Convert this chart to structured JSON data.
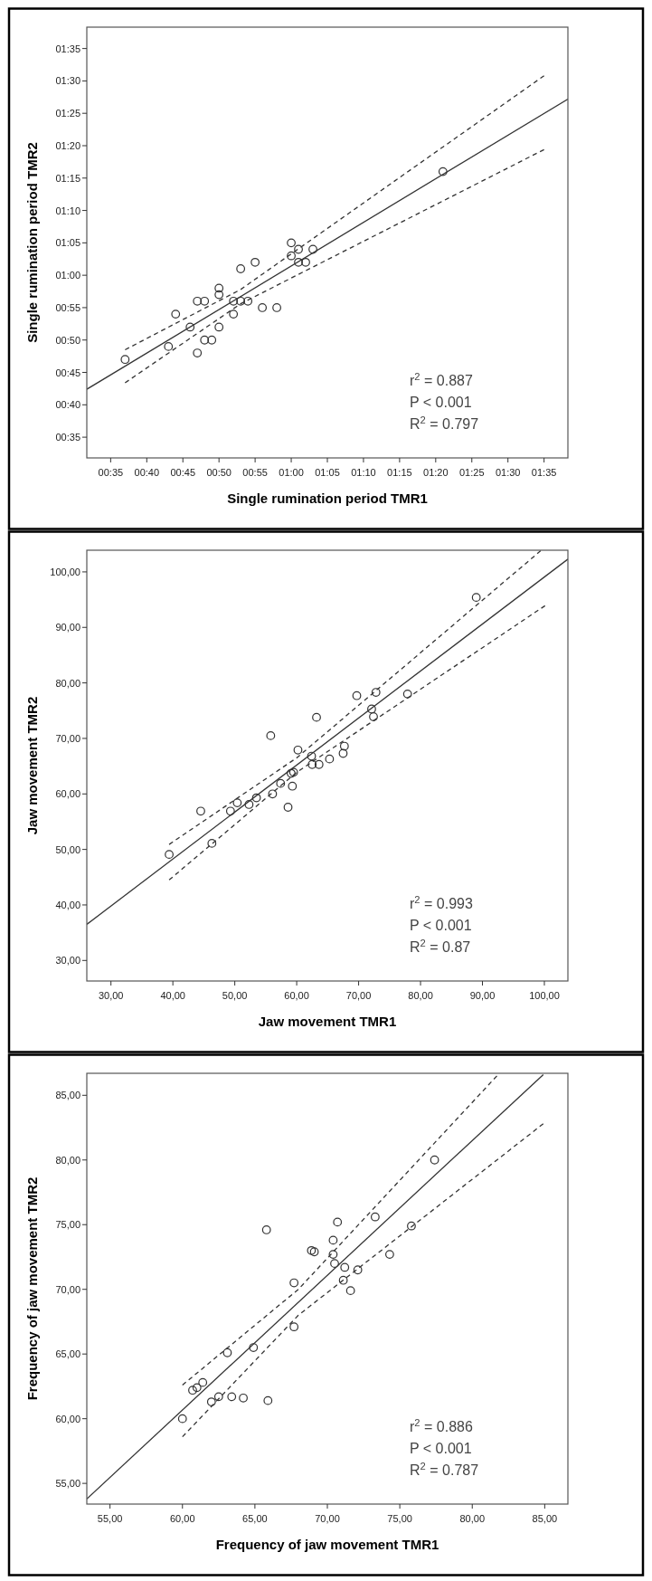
{
  "chart_data": [
    {
      "type": "scatter",
      "xlabel": "Single rumination period TMR1",
      "ylabel": "Single rumination period TMR2",
      "xlim": [
        31.7,
        98.3
      ],
      "ylim": [
        31.8,
        98.3
      ],
      "xticks": [
        {
          "value": 35,
          "label": "00:35"
        },
        {
          "value": 40,
          "label": "00:40"
        },
        {
          "value": 45,
          "label": "00:45"
        },
        {
          "value": 50,
          "label": "00:50"
        },
        {
          "value": 55,
          "label": "00:55"
        },
        {
          "value": 60,
          "label": "01:00"
        },
        {
          "value": 65,
          "label": "01:05"
        },
        {
          "value": 70,
          "label": "01:10"
        },
        {
          "value": 75,
          "label": "01:15"
        },
        {
          "value": 80,
          "label": "01:20"
        },
        {
          "value": 85,
          "label": "01:25"
        },
        {
          "value": 90,
          "label": "01:30"
        },
        {
          "value": 95,
          "label": "01:35"
        }
      ],
      "yticks": [
        {
          "value": 35,
          "label": "00:35"
        },
        {
          "value": 40,
          "label": "00:40"
        },
        {
          "value": 45,
          "label": "00:45"
        },
        {
          "value": 50,
          "label": "00:50"
        },
        {
          "value": 55,
          "label": "00:55"
        },
        {
          "value": 60,
          "label": "01:00"
        },
        {
          "value": 65,
          "label": "01:05"
        },
        {
          "value": 70,
          "label": "01:10"
        },
        {
          "value": 75,
          "label": "01:15"
        },
        {
          "value": 80,
          "label": "01:20"
        },
        {
          "value": 85,
          "label": "01:25"
        },
        {
          "value": 90,
          "label": "01:30"
        },
        {
          "value": 95,
          "label": "01:35"
        }
      ],
      "series": [
        {
          "marker": "circle",
          "color": "#333333",
          "x": [
            37,
            43,
            44,
            46,
            47,
            48,
            47,
            48,
            49,
            50,
            50,
            50,
            52,
            52,
            53,
            53,
            54,
            55,
            56,
            58,
            60,
            60,
            61,
            61,
            62,
            63,
            81
          ],
          "values": [
            47,
            49,
            54,
            52,
            56,
            56,
            48,
            50,
            50,
            58,
            57,
            52,
            56,
            54,
            61,
            56,
            56,
            62,
            55,
            55,
            65,
            63,
            64,
            62,
            62,
            64,
            76
          ]
        },
        {
          "type": "line",
          "color": "#333333",
          "line_style": "solid",
          "x": [
            31.7,
            98.3
          ],
          "values": [
            42.4,
            87.2
          ]
        },
        {
          "type": "line",
          "color": "#333333",
          "line_style": "dashed",
          "x": [
            37,
            53,
            95
          ],
          "values": [
            48.5,
            57.8,
            90.8
          ]
        },
        {
          "type": "line",
          "color": "#333333",
          "line_style": "dashed",
          "x": [
            37,
            53,
            95
          ],
          "values": [
            43.4,
            55.6,
            79.4
          ]
        }
      ],
      "annotations": [
        "r$^{2}$ = 0.887",
        "P < 0.001",
        "R$^{2}$ = 0.797"
      ]
    },
    {
      "type": "scatter",
      "xlabel": "Jaw movement TMR1",
      "ylabel": "Jaw movement TMR2",
      "xlim": [
        26.1,
        103.8
      ],
      "ylim": [
        26.3,
        103.9
      ],
      "xticks": [
        {
          "value": 30,
          "label": "30,00"
        },
        {
          "value": 40,
          "label": "40,00"
        },
        {
          "value": 50,
          "label": "50,00"
        },
        {
          "value": 60,
          "label": "60,00"
        },
        {
          "value": 70,
          "label": "70,00"
        },
        {
          "value": 80,
          "label": "80,00"
        },
        {
          "value": 90,
          "label": "90,00"
        },
        {
          "value": 100,
          "label": "100,00"
        }
      ],
      "yticks": [
        {
          "value": 30,
          "label": "30,00"
        },
        {
          "value": 40,
          "label": "40,00"
        },
        {
          "value": 50,
          "label": "50,00"
        },
        {
          "value": 60,
          "label": "60,00"
        },
        {
          "value": 70,
          "label": "70,00"
        },
        {
          "value": 80,
          "label": "80,00"
        },
        {
          "value": 90,
          "label": "90,00"
        },
        {
          "value": 100,
          "label": "100,00"
        }
      ],
      "series": [
        {
          "marker": "circle",
          "color": "#333333",
          "x": [
            39.4,
            44.5,
            46.3,
            49.3,
            50.4,
            52.3,
            53.5,
            55.8,
            56.1,
            57.4,
            58.6,
            59.1,
            59.5,
            59.3,
            60.2,
            62.4,
            62.5,
            63.6,
            63.2,
            65.3,
            67.5,
            67.7,
            69.7,
            72.1,
            72.4,
            72.8,
            77.9,
            89.0
          ],
          "values": [
            49.1,
            56.9,
            51.1,
            56.9,
            58.4,
            58.1,
            59.3,
            70.5,
            60.0,
            61.9,
            57.6,
            63.7,
            63.9,
            61.4,
            67.9,
            66.8,
            65.3,
            65.3,
            73.8,
            66.3,
            67.3,
            68.6,
            77.7,
            75.3,
            73.9,
            78.3,
            78.0,
            95.4
          ]
        },
        {
          "type": "line",
          "color": "#333333",
          "line_style": "solid",
          "x": [
            26.1,
            103.8
          ],
          "values": [
            36.5,
            102.3
          ]
        },
        {
          "type": "line",
          "color": "#333333",
          "line_style": "dashed",
          "x": [
            39.4,
            60,
            99.4
          ],
          "values": [
            50.9,
            66.5,
            103.8
          ]
        },
        {
          "type": "line",
          "color": "#333333",
          "line_style": "dashed",
          "x": [
            39.4,
            60,
            100.1
          ],
          "values": [
            44.5,
            63.9,
            93.9
          ]
        }
      ],
      "annotations": [
        "r$^{2}$ = 0.993",
        "P < 0.001",
        "R$^{2}$ = 0.87"
      ]
    },
    {
      "type": "scatter",
      "xlabel": "Frequency of jaw movement TMR1",
      "ylabel": "Frequency of jaw movement TMR2",
      "xlim": [
        53.4,
        86.6
      ],
      "ylim": [
        53.4,
        86.7
      ],
      "xticks": [
        {
          "value": 55,
          "label": "55,00"
        },
        {
          "value": 60,
          "label": "60,00"
        },
        {
          "value": 65,
          "label": "65,00"
        },
        {
          "value": 70,
          "label": "70,00"
        },
        {
          "value": 75,
          "label": "75,00"
        },
        {
          "value": 80,
          "label": "80,00"
        },
        {
          "value": 85,
          "label": "85,00"
        }
      ],
      "yticks": [
        {
          "value": 55,
          "label": "55,00"
        },
        {
          "value": 60,
          "label": "60,00"
        },
        {
          "value": 65,
          "label": "65,00"
        },
        {
          "value": 70,
          "label": "70,00"
        },
        {
          "value": 75,
          "label": "75,00"
        },
        {
          "value": 80,
          "label": "80,00"
        },
        {
          "value": 85,
          "label": "85,00"
        }
      ],
      "series": [
        {
          "marker": "circle",
          "color": "#333333",
          "x": [
            60.0,
            60.7,
            61.0,
            61.4,
            62.0,
            62.5,
            63.4,
            63.1,
            64.2,
            64.9,
            65.8,
            65.9,
            67.7,
            67.7,
            68.9,
            69.1,
            70.4,
            70.4,
            70.5,
            70.7,
            71.1,
            71.2,
            71.6,
            72.1,
            73.3,
            74.3,
            75.8,
            77.4
          ],
          "values": [
            60.0,
            62.2,
            62.4,
            62.8,
            61.3,
            61.7,
            61.7,
            65.1,
            61.6,
            65.5,
            74.6,
            61.4,
            70.5,
            67.1,
            73.0,
            72.9,
            73.8,
            72.7,
            72.0,
            75.2,
            70.7,
            71.7,
            69.9,
            71.5,
            75.6,
            72.7,
            74.9,
            80.0
          ]
        },
        {
          "type": "line",
          "color": "#333333",
          "line_style": "solid",
          "x": [
            53.4,
            84.9
          ],
          "values": [
            53.8,
            86.6
          ]
        },
        {
          "type": "line",
          "color": "#333333",
          "line_style": "dashed",
          "x": [
            60,
            68,
            81.7
          ],
          "values": [
            62.6,
            70.0,
            86.5
          ]
        },
        {
          "type": "line",
          "color": "#333333",
          "line_style": "dashed",
          "x": [
            60,
            68,
            84.9
          ],
          "values": [
            58.6,
            68.0,
            82.8
          ]
        }
      ],
      "annotations": [
        "r$^{2}$ = 0.886",
        "P < 0.001",
        "R$^{2}$ = 0.787"
      ]
    }
  ]
}
